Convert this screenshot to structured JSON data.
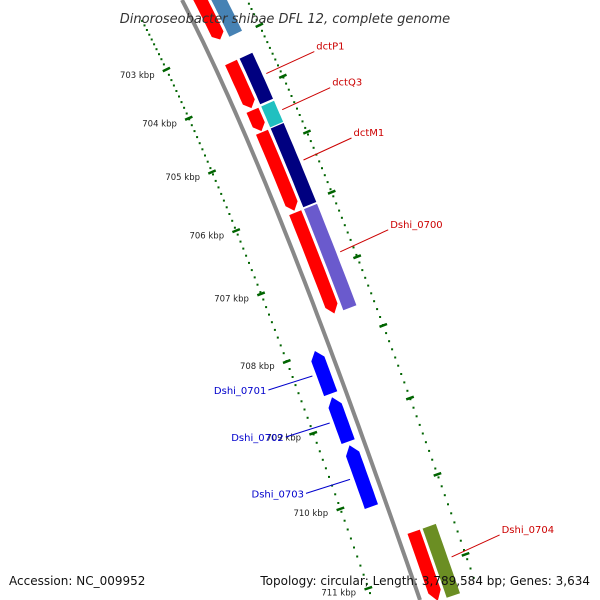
{
  "title": "Dinoroseobacter shibae DFL 12, complete genome",
  "footer": {
    "accession": "Accession: NC_009952",
    "topology": "Topology: circular; Length: 3,789,584 bp; Genes: 3,634"
  },
  "scale": {
    "ticks": [
      {
        "label": "703 kbp",
        "bp": 703000
      },
      {
        "label": "704 kbp",
        "bp": 704000
      },
      {
        "label": "705 kbp",
        "bp": 705000
      },
      {
        "label": "706 kbp",
        "bp": 706000
      },
      {
        "label": "707 kbp",
        "bp": 707000
      },
      {
        "label": "708 kbp",
        "bp": 708000
      },
      {
        "label": "709 kbp",
        "bp": 709000
      },
      {
        "label": "710 kbp",
        "bp": 710000
      },
      {
        "label": "711 kbp",
        "bp": 711000
      }
    ]
  },
  "genes": [
    {
      "name": "dctP1",
      "strand": "+",
      "start": 703400,
      "end": 704280,
      "color": "#000080"
    },
    {
      "name": "dctQ3",
      "strand": "+",
      "start": 704320,
      "end": 704700,
      "color": "#20c0c0"
    },
    {
      "name": "dctM1",
      "strand": "+",
      "start": 704720,
      "end": 706050,
      "color": "#000080"
    },
    {
      "name": "Dshi_0700",
      "strand": "+",
      "start": 706080,
      "end": 707620,
      "color": "#6a5acd"
    },
    {
      "name": "Dshi_0701",
      "strand": "-",
      "start": 708000,
      "end": 708600,
      "color": "#0000ff"
    },
    {
      "name": "Dshi_0702",
      "strand": "-",
      "start": 708650,
      "end": 709250,
      "color": "#0000ff"
    },
    {
      "name": "Dshi_0703",
      "strand": "-",
      "start": 709300,
      "end": 710100,
      "color": "#0000ff"
    },
    {
      "name": "Dshi_0704",
      "strand": "+",
      "start": 710550,
      "end": 711400,
      "color": "#6b8e23"
    }
  ],
  "colors": {
    "backbone": "#888888",
    "cds": "#ff0000",
    "plus_label": "#cc0000",
    "minus_label": "#0000cc",
    "scale_dots": "#006400"
  }
}
